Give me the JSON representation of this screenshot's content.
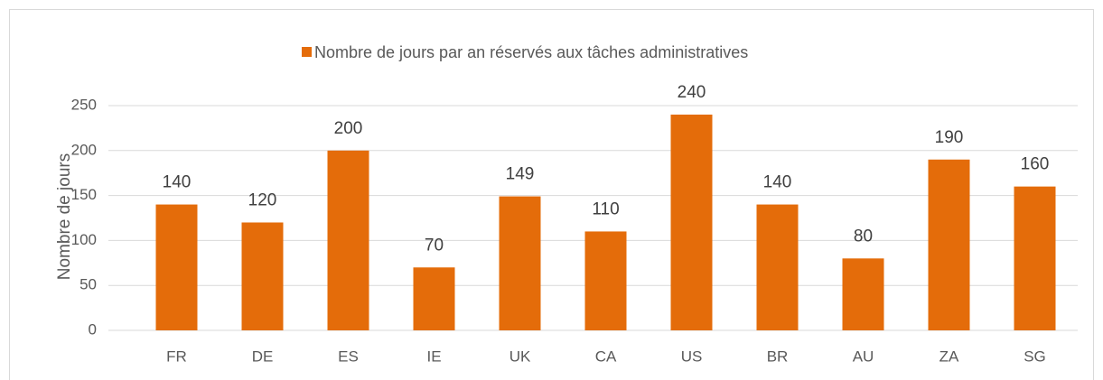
{
  "chart_data": {
    "type": "bar",
    "categories": [
      "FR",
      "DE",
      "ES",
      "IE",
      "UK",
      "CA",
      "US",
      "BR",
      "AU",
      "ZA",
      "SG"
    ],
    "series": [
      {
        "name": "Nombre de jours par an réservés aux tâches administratives",
        "color": "#e46c0a",
        "values": [
          140,
          120,
          200,
          70,
          149,
          110,
          240,
          140,
          80,
          190,
          160
        ]
      }
    ],
    "y_label": "Nombre de jours",
    "ylim": [
      0,
      250
    ],
    "yticks": [
      0,
      50,
      100,
      150,
      200,
      250
    ],
    "grid": true,
    "legend": "top",
    "data_labels": true
  }
}
